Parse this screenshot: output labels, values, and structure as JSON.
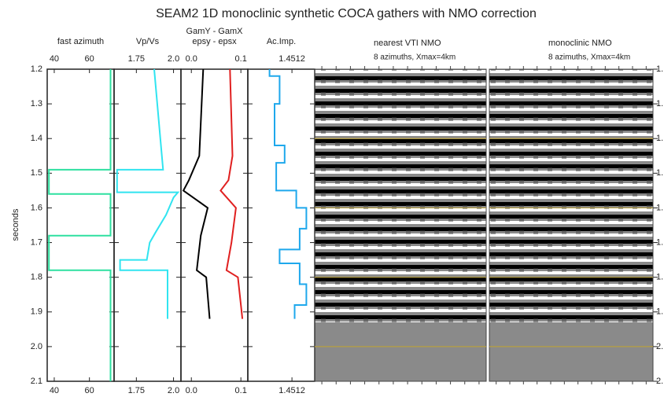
{
  "title": "SEAM2 1D monoclinic synthetic COCA gathers with NMO correction",
  "y_axis": {
    "label": "seconds",
    "ylim": [
      1.2,
      2.1
    ],
    "yticks": [
      1.2,
      1.3,
      1.4,
      1.5,
      1.6,
      1.7,
      1.8,
      1.9,
      {
        "value": 2.0,
        "label": "2.0"
      },
      2.1
    ],
    "right_yticks": [
      {
        "value": 1.2,
        "label": "1."
      },
      {
        "value": 1.3,
        "label": "1."
      },
      {
        "value": 1.4,
        "label": "1."
      },
      {
        "value": 1.5,
        "label": "1."
      },
      {
        "value": 1.6,
        "label": "1."
      },
      {
        "value": 1.7,
        "label": "1."
      },
      {
        "value": 1.8,
        "label": "1."
      },
      {
        "value": 1.9,
        "label": "1."
      },
      {
        "value": 2.0,
        "label": "2."
      },
      {
        "value": 2.1,
        "label": "2."
      }
    ]
  },
  "chart_data": [
    {
      "type": "line",
      "xlim": [
        36,
        74
      ],
      "xticks": [
        40,
        60
      ],
      "series": [
        {
          "name": "fast azimuth",
          "color": "#2ee0a0",
          "depth": [
            1.2,
            1.49,
            1.49,
            1.56,
            1.56,
            1.68,
            1.68,
            1.78,
            1.78,
            2.1
          ],
          "values": [
            72,
            72,
            37,
            37,
            72,
            72,
            37,
            37,
            72,
            72
          ]
        }
      ]
    },
    {
      "type": "line",
      "xlim": [
        1.6,
        2.05
      ],
      "xticks": [
        1.75,
        {
          "value": 2.0,
          "label": "2.0"
        }
      ],
      "series": [
        {
          "name": "Vp/Vs",
          "color": "#30e4f0",
          "depth": [
            1.2,
            1.49,
            1.49,
            1.555,
            1.555,
            1.57,
            1.62,
            1.67,
            1.7,
            1.75,
            1.75,
            1.78,
            1.78,
            1.92
          ],
          "values": [
            1.87,
            1.93,
            1.62,
            1.62,
            2.03,
            2.0,
            1.95,
            1.88,
            1.84,
            1.82,
            1.64,
            1.64,
            1.96,
            1.96
          ]
        }
      ]
    },
    {
      "type": "line",
      "xlim": [
        -0.021,
        0.114
      ],
      "xticks": [
        {
          "value": 0,
          "label": "0.0"
        },
        0.1
      ],
      "series": [
        {
          "name": "GamY - GamX",
          "color": "#000000",
          "depth": [
            1.2,
            1.45,
            1.52,
            1.55,
            1.6,
            1.68,
            1.78,
            1.8,
            1.92
          ],
          "values": [
            0.024,
            0.016,
            -0.005,
            -0.016,
            0.033,
            0.019,
            0.011,
            0.03,
            0.037
          ]
        },
        {
          "name": "epsy - epsx",
          "color": "#e02020",
          "depth": [
            1.2,
            1.45,
            1.52,
            1.55,
            1.6,
            1.7,
            1.78,
            1.8,
            1.92
          ],
          "values": [
            0.078,
            0.083,
            0.075,
            0.059,
            0.09,
            0.081,
            0.071,
            0.094,
            0.103
          ]
        }
      ]
    },
    {
      "type": "line",
      "xlim": [
        1.438,
        1.458
      ],
      "xticks": [
        1.4512
      ],
      "series": [
        {
          "name": "Ac.Imp.",
          "color": "#1ea8ec",
          "depth": [
            1.2,
            1.22,
            1.22,
            1.3,
            1.3,
            1.42,
            1.42,
            1.47,
            1.47,
            1.55,
            1.55,
            1.6,
            1.6,
            1.66,
            1.66,
            1.72,
            1.72,
            1.76,
            1.76,
            1.82,
            1.82,
            1.88,
            1.88,
            1.92
          ],
          "values": [
            1.4445,
            1.4445,
            1.4475,
            1.4475,
            1.446,
            1.446,
            1.449,
            1.449,
            1.4465,
            1.4465,
            1.4525,
            1.4525,
            1.4555,
            1.4555,
            1.4535,
            1.4535,
            1.4475,
            1.4475,
            1.4535,
            1.4535,
            1.4555,
            1.4555,
            1.452,
            1.452
          ]
        }
      ]
    },
    {
      "type": "image",
      "title": "nearest VTI NMO",
      "subtitle": "8 azimuths, Xmax=4km",
      "hlines": [
        1.4,
        1.6,
        1.8,
        2.0
      ],
      "hline_color": "#b8a040"
    },
    {
      "type": "image",
      "title": "monoclinic NMO",
      "subtitle": "8 azimuths, Xmax=4km",
      "hlines": [
        1.4,
        1.6,
        1.8,
        2.0
      ],
      "hline_color": "#b8a040"
    }
  ]
}
